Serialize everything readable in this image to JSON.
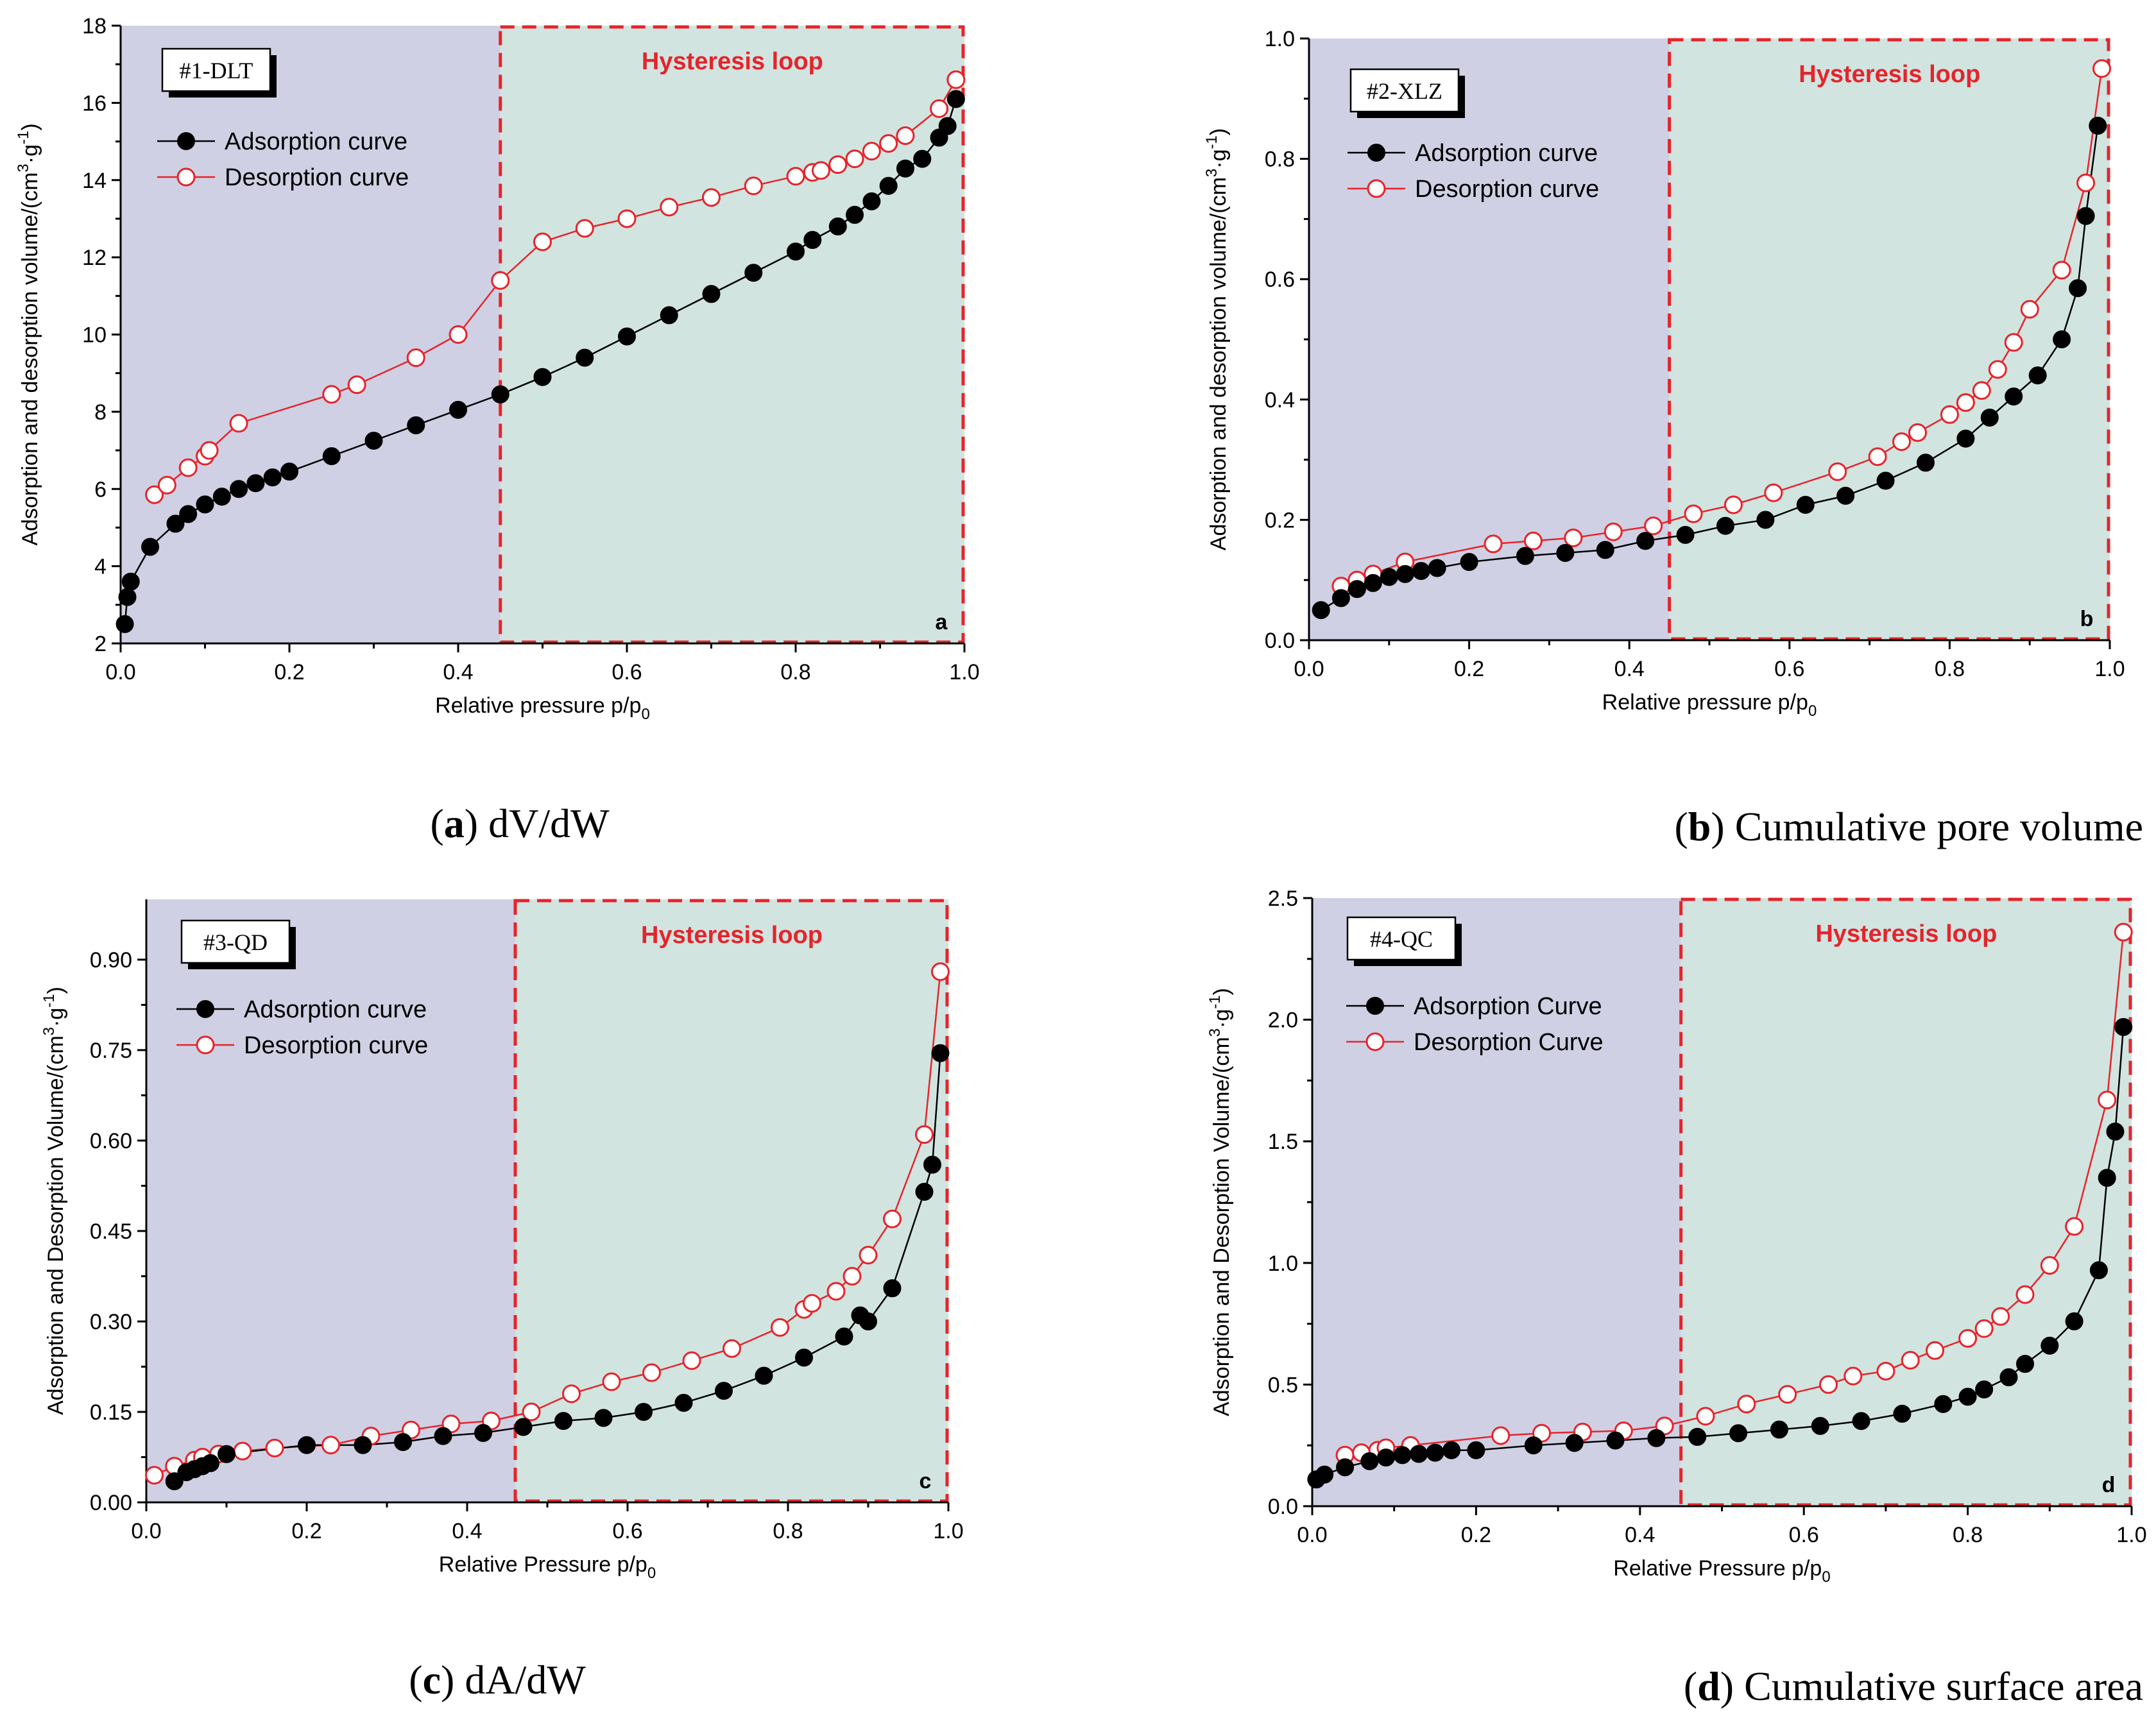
{
  "chart_data": [
    {
      "type": "line",
      "panel_letter": "a",
      "sample_label": "#1-DLT",
      "region_label": "Hysteresis loop",
      "hysteresis_start": 0.45,
      "caption_letter": "a",
      "caption_text": "dV/dW",
      "xlabel": "Relative pressure p/p",
      "xlabel_sub": "0",
      "ylabel_pre": "Adsorption and desorption volume/(cm",
      "ylabel_sup1": "3",
      "ylabel_mid": "·g",
      "ylabel_sup2": "-1",
      "ylabel_post": ")",
      "xlim": [
        0.0,
        1.0
      ],
      "ylim": [
        2,
        18
      ],
      "xticks": [
        0.0,
        0.2,
        0.4,
        0.6,
        0.8,
        1.0
      ],
      "xtick_labels": [
        "0.0",
        "0.2",
        "0.4",
        "0.6",
        "0.8",
        "1.0"
      ],
      "yticks": [
        2,
        4,
        6,
        8,
        10,
        12,
        14,
        16,
        18
      ],
      "ytick_labels": [
        "2",
        "4",
        "6",
        "8",
        "10",
        "12",
        "14",
        "16",
        "18"
      ],
      "legend": [
        "Adsorption curve",
        "Desorption curve"
      ],
      "series": [
        {
          "name": "Adsorption curve",
          "x": [
            0.005,
            0.008,
            0.012,
            0.035,
            0.065,
            0.08,
            0.1,
            0.12,
            0.14,
            0.16,
            0.18,
            0.2,
            0.25,
            0.3,
            0.35,
            0.4,
            0.45,
            0.5,
            0.55,
            0.6,
            0.65,
            0.7,
            0.75,
            0.8,
            0.82,
            0.85,
            0.87,
            0.89,
            0.91,
            0.93,
            0.95,
            0.97,
            0.98,
            0.99
          ],
          "y": [
            2.5,
            3.2,
            3.6,
            4.5,
            5.1,
            5.35,
            5.6,
            5.8,
            6.0,
            6.15,
            6.3,
            6.45,
            6.85,
            7.25,
            7.65,
            8.05,
            8.45,
            8.9,
            9.4,
            9.95,
            10.5,
            11.05,
            11.6,
            12.15,
            12.45,
            12.8,
            13.1,
            13.45,
            13.85,
            14.3,
            14.55,
            15.1,
            15.4,
            16.1
          ]
        },
        {
          "name": "Desorption curve",
          "x": [
            0.04,
            0.055,
            0.08,
            0.1,
            0.105,
            0.14,
            0.25,
            0.28,
            0.35,
            0.4,
            0.45,
            0.5,
            0.55,
            0.6,
            0.65,
            0.7,
            0.75,
            0.8,
            0.82,
            0.83,
            0.85,
            0.87,
            0.89,
            0.91,
            0.93,
            0.97,
            0.99
          ],
          "y": [
            5.85,
            6.1,
            6.55,
            6.85,
            7.0,
            7.7,
            8.45,
            8.7,
            9.4,
            10.0,
            11.4,
            12.4,
            12.75,
            13.0,
            13.3,
            13.55,
            13.85,
            14.1,
            14.2,
            14.25,
            14.4,
            14.55,
            14.75,
            14.95,
            15.15,
            15.85,
            16.6
          ]
        }
      ]
    },
    {
      "type": "line",
      "panel_letter": "b",
      "sample_label": "#2-XLZ",
      "region_label": "Hysteresis loop",
      "hysteresis_start": 0.45,
      "caption_letter": "b",
      "caption_text": "Cumulative pore volume",
      "xlabel": "Relative pressure p/p",
      "xlabel_sub": "0",
      "ylabel_pre": "Adsorption and desorption volume/(cm",
      "ylabel_sup1": "3",
      "ylabel_mid": "·g",
      "ylabel_sup2": "-1",
      "ylabel_post": ")",
      "xlim": [
        0.0,
        1.0
      ],
      "ylim": [
        0.0,
        1.0
      ],
      "xticks": [
        0.0,
        0.2,
        0.4,
        0.6,
        0.8,
        1.0
      ],
      "xtick_labels": [
        "0.0",
        "0.2",
        "0.4",
        "0.6",
        "0.8",
        "1.0"
      ],
      "yticks": [
        0.0,
        0.2,
        0.4,
        0.6,
        0.8,
        1.0
      ],
      "ytick_labels": [
        "0.0",
        "0.2",
        "0.4",
        "0.6",
        "0.8",
        "1.0"
      ],
      "legend": [
        "Adsorption curve",
        "Desorption curve"
      ],
      "series": [
        {
          "name": "Adsorption curve",
          "x": [
            0.015,
            0.04,
            0.06,
            0.08,
            0.1,
            0.12,
            0.14,
            0.16,
            0.2,
            0.27,
            0.32,
            0.37,
            0.42,
            0.47,
            0.52,
            0.57,
            0.62,
            0.67,
            0.72,
            0.77,
            0.82,
            0.85,
            0.88,
            0.91,
            0.94,
            0.96,
            0.97,
            0.985
          ],
          "y": [
            0.05,
            0.07,
            0.085,
            0.095,
            0.105,
            0.11,
            0.115,
            0.12,
            0.13,
            0.14,
            0.145,
            0.15,
            0.165,
            0.175,
            0.19,
            0.2,
            0.225,
            0.24,
            0.265,
            0.295,
            0.335,
            0.37,
            0.405,
            0.44,
            0.5,
            0.585,
            0.705,
            0.855
          ]
        },
        {
          "name": "Desorption curve",
          "x": [
            0.04,
            0.06,
            0.08,
            0.12,
            0.23,
            0.28,
            0.33,
            0.38,
            0.43,
            0.48,
            0.53,
            0.58,
            0.66,
            0.71,
            0.74,
            0.76,
            0.8,
            0.82,
            0.84,
            0.86,
            0.88,
            0.9,
            0.94,
            0.97,
            0.99
          ],
          "y": [
            0.09,
            0.1,
            0.11,
            0.13,
            0.16,
            0.165,
            0.17,
            0.18,
            0.19,
            0.21,
            0.225,
            0.245,
            0.28,
            0.305,
            0.33,
            0.345,
            0.375,
            0.395,
            0.415,
            0.45,
            0.495,
            0.55,
            0.615,
            0.76,
            0.95
          ]
        }
      ]
    },
    {
      "type": "line",
      "panel_letter": "c",
      "sample_label": "#3-QD",
      "region_label": "Hysteresis loop",
      "hysteresis_start": 0.46,
      "caption_letter": "c",
      "caption_text": "dA/dW",
      "xlabel": "Relative Pressure p/p",
      "xlabel_sub": "0",
      "ylabel_pre": "Adsorption and Desorption Volume/(cm",
      "ylabel_sup1": "3",
      "ylabel_mid": "·g",
      "ylabel_sup2": "-1",
      "ylabel_post": ")",
      "xlim": [
        0.0,
        1.0
      ],
      "ylim": [
        0.0,
        1.0
      ],
      "xticks": [
        0.0,
        0.2,
        0.4,
        0.6,
        0.8,
        1.0
      ],
      "xtick_labels": [
        "0.0",
        "0.2",
        "0.4",
        "0.6",
        "0.8",
        "1.0"
      ],
      "yticks": [
        0.0,
        0.15,
        0.3,
        0.45,
        0.6,
        0.75,
        0.9
      ],
      "ytick_labels": [
        "0.00",
        "0.15",
        "0.30",
        "0.45",
        "0.60",
        "0.75",
        "0.90"
      ],
      "legend": [
        "Adsorption curve",
        "Desorption curve"
      ],
      "series": [
        {
          "name": "Adsorption curve",
          "x": [
            0.035,
            0.05,
            0.06,
            0.07,
            0.08,
            0.1,
            0.2,
            0.27,
            0.32,
            0.37,
            0.42,
            0.47,
            0.52,
            0.57,
            0.62,
            0.67,
            0.72,
            0.77,
            0.82,
            0.87,
            0.89,
            0.9,
            0.93,
            0.97,
            0.98,
            0.99
          ],
          "y": [
            0.035,
            0.05,
            0.055,
            0.06,
            0.065,
            0.08,
            0.095,
            0.095,
            0.1,
            0.11,
            0.115,
            0.125,
            0.135,
            0.14,
            0.15,
            0.165,
            0.185,
            0.21,
            0.24,
            0.275,
            0.31,
            0.3,
            0.355,
            0.515,
            0.56,
            0.745
          ]
        },
        {
          "name": "Desorption curve",
          "x": [
            0.01,
            0.035,
            0.06,
            0.07,
            0.09,
            0.12,
            0.16,
            0.23,
            0.28,
            0.33,
            0.38,
            0.43,
            0.48,
            0.53,
            0.58,
            0.63,
            0.68,
            0.73,
            0.79,
            0.82,
            0.83,
            0.86,
            0.88,
            0.9,
            0.93,
            0.97,
            0.99
          ],
          "y": [
            0.045,
            0.06,
            0.07,
            0.075,
            0.08,
            0.085,
            0.09,
            0.095,
            0.11,
            0.12,
            0.13,
            0.135,
            0.15,
            0.18,
            0.2,
            0.215,
            0.235,
            0.255,
            0.29,
            0.32,
            0.33,
            0.35,
            0.375,
            0.41,
            0.47,
            0.61,
            0.88
          ]
        }
      ]
    },
    {
      "type": "line",
      "panel_letter": "d",
      "sample_label": "#4-QC",
      "region_label": "Hysteresis loop",
      "hysteresis_start": 0.45,
      "caption_letter": "d",
      "caption_text": "Cumulative surface area",
      "xlabel": "Relative Pressure p/p",
      "xlabel_sub": "0",
      "ylabel_pre": "Adsorption and Desorption Volume/(cm",
      "ylabel_sup1": "3",
      "ylabel_mid": "·g",
      "ylabel_sup2": "-1",
      "ylabel_post": ")",
      "xlim": [
        0.0,
        1.0
      ],
      "ylim": [
        0.0,
        2.5
      ],
      "xticks": [
        0.0,
        0.2,
        0.4,
        0.6,
        0.8,
        1.0
      ],
      "xtick_labels": [
        "0.0",
        "0.2",
        "0.4",
        "0.6",
        "0.8",
        "1.0"
      ],
      "yticks": [
        0.0,
        0.5,
        1.0,
        1.5,
        2.0,
        2.5
      ],
      "ytick_labels": [
        "0.0",
        "0.5",
        "1.0",
        "1.5",
        "2.0",
        "2.5"
      ],
      "legend": [
        "Adsorption Curve",
        "Desorption Curve"
      ],
      "series": [
        {
          "name": "Adsorption Curve",
          "x": [
            0.005,
            0.015,
            0.04,
            0.07,
            0.09,
            0.11,
            0.13,
            0.15,
            0.17,
            0.2,
            0.27,
            0.32,
            0.37,
            0.42,
            0.47,
            0.52,
            0.57,
            0.62,
            0.67,
            0.72,
            0.77,
            0.8,
            0.82,
            0.85,
            0.87,
            0.9,
            0.93,
            0.96,
            0.97,
            0.98,
            0.99
          ],
          "y": [
            0.11,
            0.13,
            0.16,
            0.185,
            0.2,
            0.21,
            0.215,
            0.22,
            0.23,
            0.23,
            0.25,
            0.26,
            0.27,
            0.28,
            0.285,
            0.3,
            0.315,
            0.33,
            0.35,
            0.38,
            0.42,
            0.45,
            0.48,
            0.53,
            0.585,
            0.66,
            0.76,
            0.97,
            1.35,
            1.54,
            1.97
          ]
        },
        {
          "name": "Desorption Curve",
          "x": [
            0.04,
            0.06,
            0.08,
            0.09,
            0.12,
            0.23,
            0.28,
            0.33,
            0.38,
            0.43,
            0.48,
            0.53,
            0.58,
            0.63,
            0.66,
            0.7,
            0.73,
            0.76,
            0.8,
            0.82,
            0.84,
            0.87,
            0.9,
            0.93,
            0.97,
            0.99
          ],
          "y": [
            0.21,
            0.22,
            0.23,
            0.24,
            0.25,
            0.29,
            0.3,
            0.305,
            0.31,
            0.33,
            0.37,
            0.42,
            0.46,
            0.5,
            0.535,
            0.555,
            0.6,
            0.64,
            0.69,
            0.73,
            0.78,
            0.87,
            0.99,
            1.15,
            1.67,
            2.36
          ]
        }
      ]
    }
  ]
}
